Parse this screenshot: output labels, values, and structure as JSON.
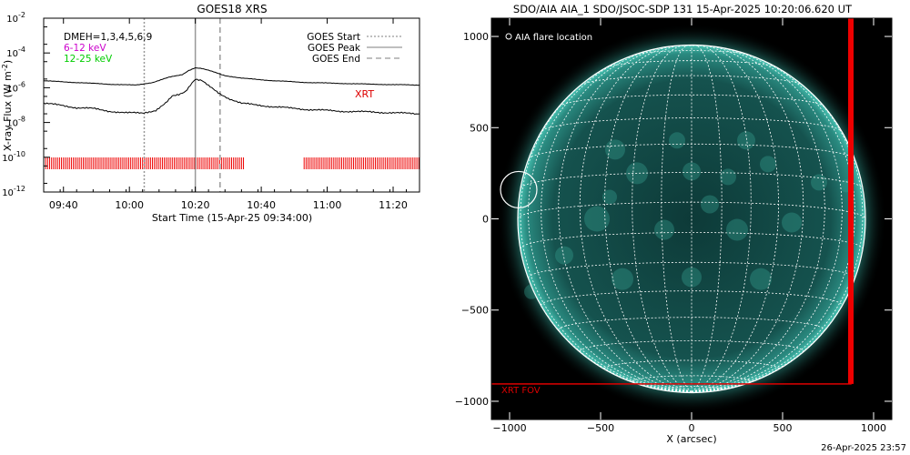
{
  "chart_data": [
    {
      "type": "line",
      "title": "GOES18 XRS",
      "xlabel": "Start Time (15-Apr-25 09:34:00)",
      "ylabel": "X-ray Flux (W m",
      "ylabel_sup": "-2",
      "ylabel_close": ")",
      "log_y": true,
      "ylim": [
        1e-12,
        0.01
      ],
      "xlim_minutes": [
        0,
        114
      ],
      "yticks": [
        {
          "exp": -2,
          "label": "10",
          "sup": "-2"
        },
        {
          "exp": -4,
          "label": "10",
          "sup": "-4"
        },
        {
          "exp": -6,
          "label": "10",
          "sup": "-6"
        },
        {
          "exp": -8,
          "label": "10",
          "sup": "-8"
        },
        {
          "exp": -10,
          "label": "10",
          "sup": "-10"
        },
        {
          "exp": -12,
          "label": "10",
          "sup": "-12"
        }
      ],
      "xticks": [
        {
          "t": 6,
          "label": "09:40"
        },
        {
          "t": 26,
          "label": "10:00"
        },
        {
          "t": 46,
          "label": "10:20"
        },
        {
          "t": 66,
          "label": "10:40"
        },
        {
          "t": 86,
          "label": "11:00"
        },
        {
          "t": 106,
          "label": "11:20"
        }
      ],
      "top_legend": [
        {
          "text": "DMEH=1,3,4,5,6,9",
          "color": "#000000"
        },
        {
          "text": "6-12 keV",
          "color": "#cc00cc"
        },
        {
          "text": "12-25 keV",
          "color": "#00cc00"
        }
      ],
      "event_legend": [
        {
          "text": "GOES Start",
          "dash": "2,2",
          "color": "#999999"
        },
        {
          "text": "GOES Peak",
          "dash": "",
          "color": "#999999"
        },
        {
          "text": "GOES End",
          "dash": "6,4",
          "color": "#999999"
        }
      ],
      "events": {
        "start": 30.5,
        "peak": 46.0,
        "end": 53.5
      },
      "xrt_label": "XRT",
      "xrt_intervals": [
        [
          0,
          61
        ],
        [
          79,
          114
        ]
      ],
      "series": [
        {
          "color": "#000000",
          "points": [
            [
              0,
              -5.6
            ],
            [
              10,
              -5.7
            ],
            [
              20,
              -5.8
            ],
            [
              28,
              -5.85
            ],
            [
              33,
              -5.7
            ],
            [
              38,
              -5.4
            ],
            [
              42,
              -5.25
            ],
            [
              44,
              -5.0
            ],
            [
              46,
              -4.85
            ],
            [
              48,
              -4.9
            ],
            [
              50,
              -5.0
            ],
            [
              55,
              -5.3
            ],
            [
              60,
              -5.45
            ],
            [
              70,
              -5.6
            ],
            [
              80,
              -5.7
            ],
            [
              90,
              -5.75
            ],
            [
              100,
              -5.8
            ],
            [
              114,
              -5.85
            ]
          ]
        },
        {
          "color": "#000000",
          "points": [
            [
              0,
              -6.9
            ],
            [
              5,
              -7.0
            ],
            [
              10,
              -7.15
            ],
            [
              15,
              -7.2
            ],
            [
              20,
              -7.35
            ],
            [
              25,
              -7.45
            ],
            [
              30,
              -7.45
            ],
            [
              34,
              -7.3
            ],
            [
              37,
              -6.9
            ],
            [
              39,
              -6.5
            ],
            [
              41,
              -6.4
            ],
            [
              43,
              -6.2
            ],
            [
              45,
              -5.7
            ],
            [
              46,
              -5.5
            ],
            [
              48,
              -5.6
            ],
            [
              50,
              -5.9
            ],
            [
              53,
              -6.3
            ],
            [
              56,
              -6.6
            ],
            [
              60,
              -6.9
            ],
            [
              65,
              -7.0
            ],
            [
              70,
              -7.1
            ],
            [
              80,
              -7.25
            ],
            [
              90,
              -7.35
            ],
            [
              100,
              -7.4
            ],
            [
              114,
              -7.5
            ]
          ]
        }
      ]
    },
    {
      "type": "scatter",
      "title": "SDO/AIA AIA_1 SDO/JSOC-SDP 131 15-Apr-2025 10:20:06.620 UT",
      "xlabel": "X (arcsec)",
      "ylabel": "",
      "xlim": [
        -1100,
        1100
      ],
      "ylim": [
        -1100,
        1100
      ],
      "xticks": [
        -1000,
        -500,
        0,
        500,
        1000
      ],
      "yticks": [
        -1000,
        -500,
        0,
        500,
        1000
      ],
      "solar_radius_arcsec": 955,
      "grid_spacing_deg": 10,
      "flare_label": "AIA flare location",
      "flare_location": {
        "x": -950,
        "y": 160,
        "r": 100
      },
      "xrt_fov_label": "XRT FOV",
      "xrt_fov": {
        "x0": -1110,
        "y0": -905,
        "x1": 875,
        "y1": 1110
      },
      "colors": {
        "disk": "#1b5e5b",
        "limb": "#3fb7a8",
        "fov": "#dd0000",
        "grid": "#ffffff"
      }
    }
  ],
  "footer": "26-Apr-2025 23:57"
}
